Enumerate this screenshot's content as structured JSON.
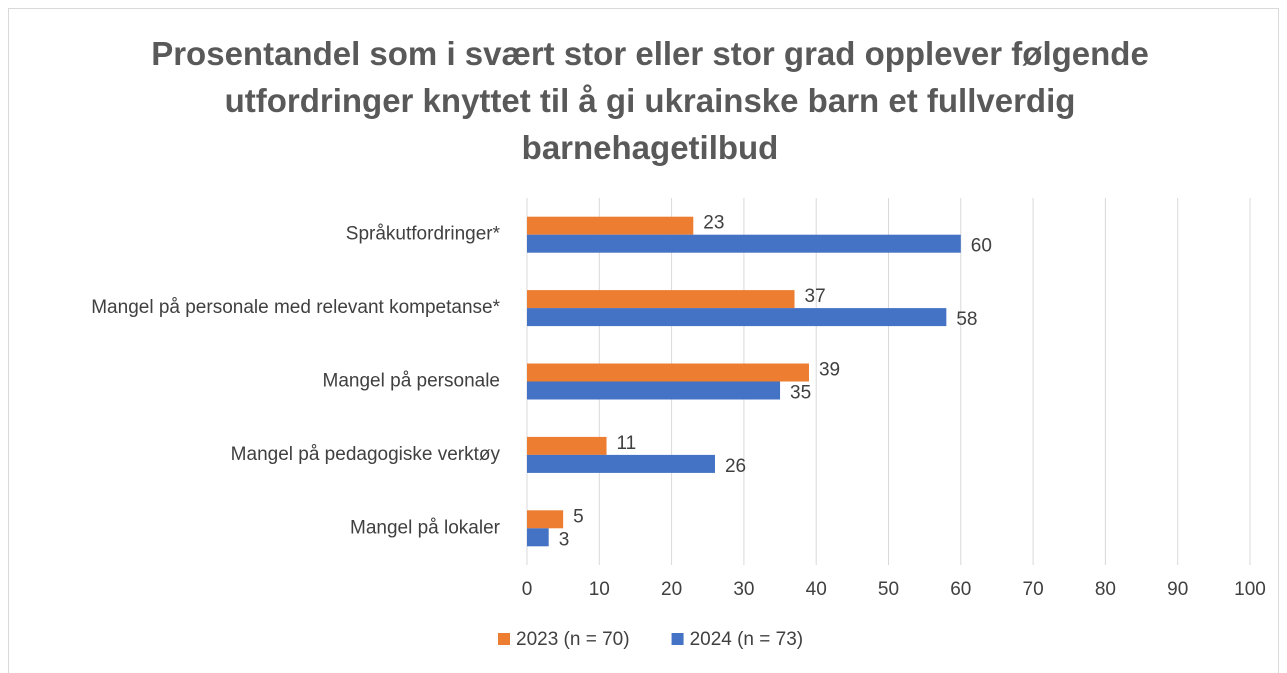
{
  "chart_data": {
    "type": "bar",
    "title": "Prosentandel som i svært stor eller stor grad opplever følgende utfordringer knyttet til å gi ukrainske barn et fullverdig barnehagetilbud",
    "categories": [
      "Språkutfordringer*",
      "Mangel på personale med relevant kompetanse*",
      "Mangel på personale",
      "Mangel på pedagogiske verktøy",
      "Mangel på lokaler"
    ],
    "series": [
      {
        "name": "2023 (n = 70)",
        "color": "#ed7d31",
        "values": [
          23,
          37,
          39,
          11,
          5
        ]
      },
      {
        "name": "2024 (n = 73)",
        "color": "#4472c4",
        "values": [
          60,
          58,
          35,
          26,
          3
        ]
      }
    ],
    "xlim": [
      0,
      100
    ],
    "xticks": [
      0,
      10,
      20,
      30,
      40,
      50,
      60,
      70,
      80,
      90,
      100
    ],
    "grid": true
  }
}
